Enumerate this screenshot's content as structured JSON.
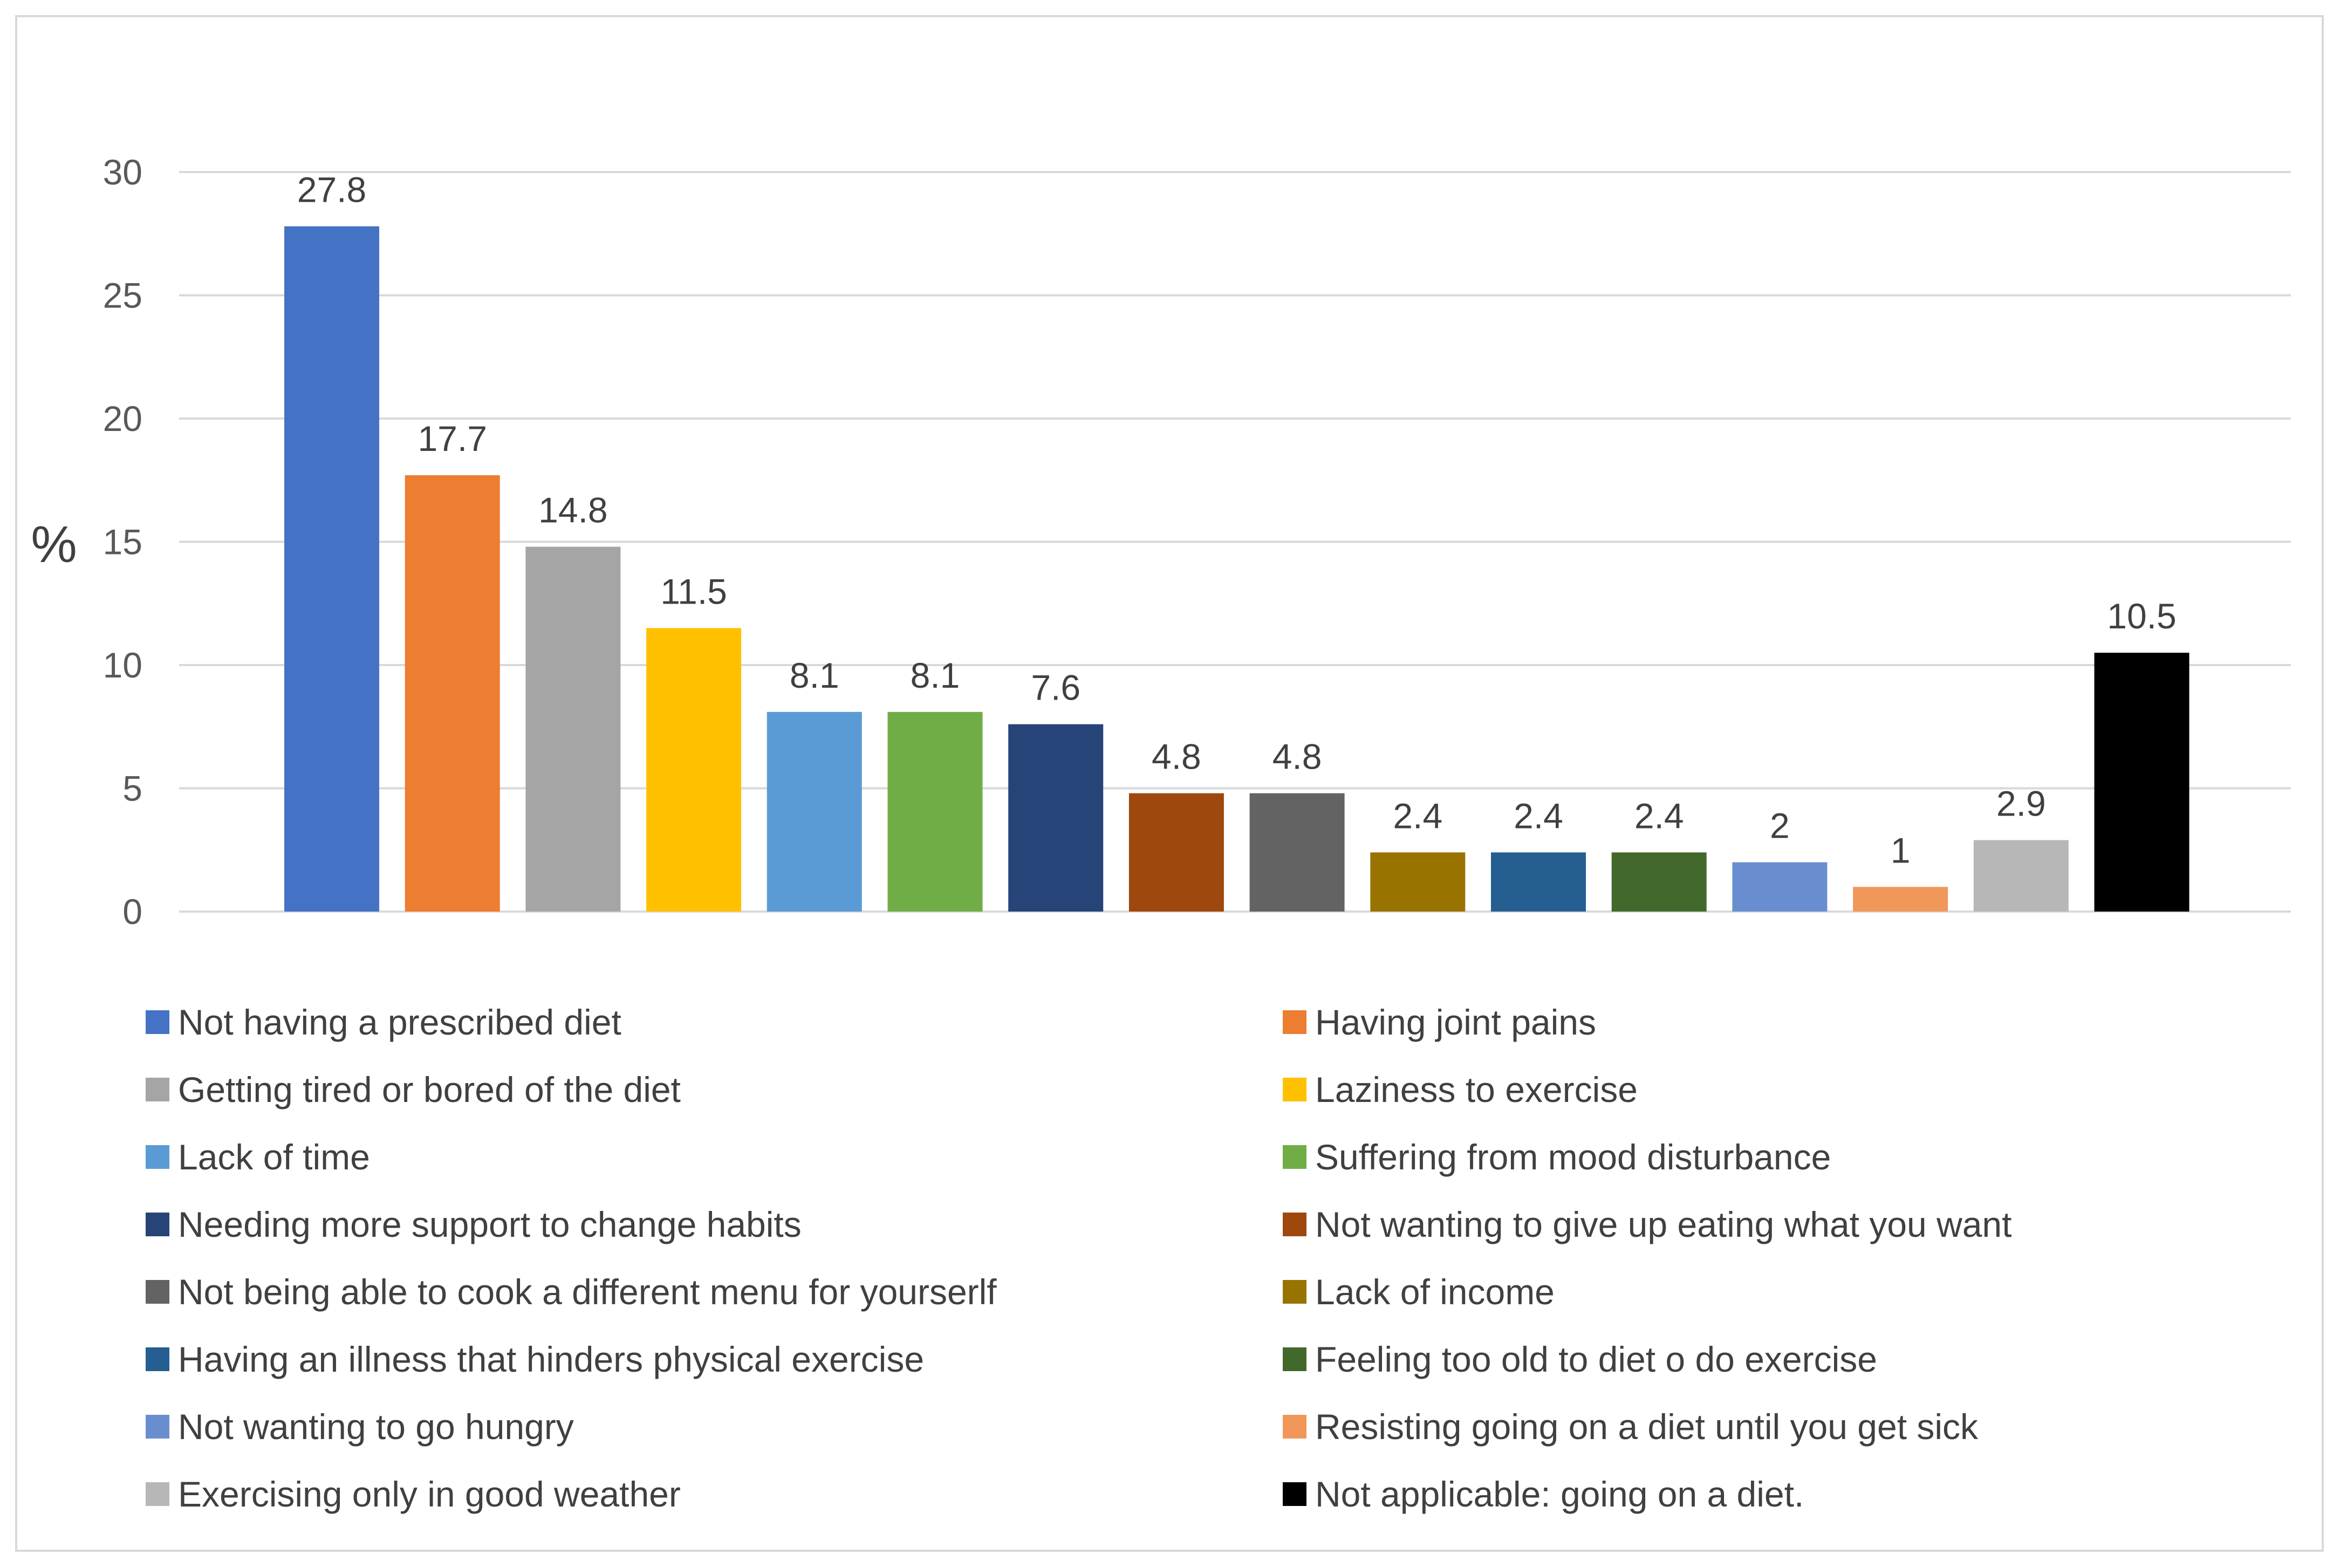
{
  "chart_data": {
    "type": "bar",
    "ylabel": "%",
    "ylim": [
      0,
      30
    ],
    "yticks": [
      0,
      5,
      10,
      15,
      20,
      25,
      30
    ],
    "grid": true,
    "legend_position": "bottom",
    "categories": [
      "Not having a prescribed diet",
      "Having joint pains",
      "Getting tired or bored of the diet",
      "Laziness to exercise",
      "Lack of time",
      "Suffering from mood disturbance",
      "Needing more support to change habits",
      "Not wanting to give up eating what you want",
      "Not being able to cook a different menu for yourserlf",
      "Lack of income",
      "Having an illness that hinders physical exercise",
      "Feeling too old to diet o do exercise",
      "Not wanting to go hungry",
      "Resisting going on a diet until you get sick",
      "Exercising only in good weather",
      "Not applicable: going on a diet."
    ],
    "values": [
      27.8,
      17.7,
      14.8,
      11.5,
      8.1,
      8.1,
      7.6,
      4.8,
      4.8,
      2.4,
      2.4,
      2.4,
      2,
      1,
      2.9,
      10.5
    ],
    "value_labels": [
      "27.8",
      "17.7",
      "14.8",
      "11.5",
      "8.1",
      "8.1",
      "7.6",
      "4.8",
      "4.8",
      "2.4",
      "2.4",
      "2.4",
      "2",
      "1",
      "2.9",
      "10.5"
    ],
    "colors": [
      "#4472C4",
      "#ED7D31",
      "#A5A5A5",
      "#FFC000",
      "#5B9BD5",
      "#70AD47",
      "#264478",
      "#9E480E",
      "#636363",
      "#997300",
      "#255E91",
      "#43682B",
      "#698ED0",
      "#F1975A",
      "#B7B7B7",
      "#000000"
    ]
  }
}
